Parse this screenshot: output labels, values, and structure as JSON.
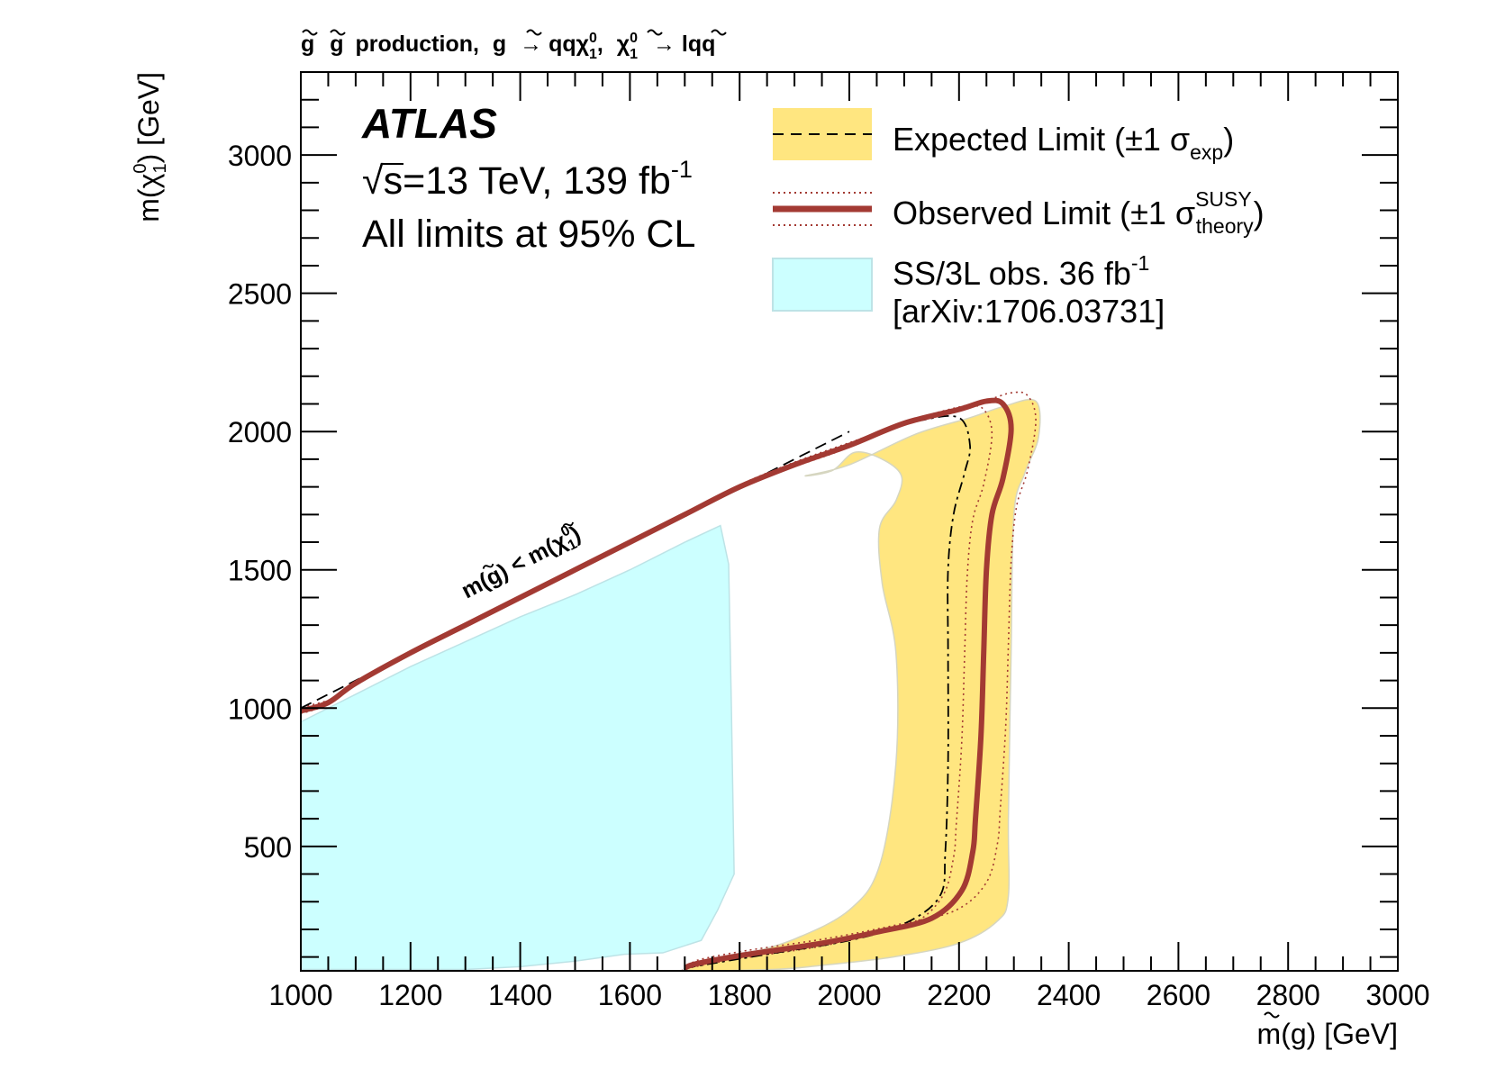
{
  "chart_data": {
    "type": "exclusion-contour",
    "title": "g̃ g̃ production, g̃ → qqχ̃⁰₁, χ̃⁰₁ → lqq",
    "title_parts": {
      "gl1": "g",
      "gl2": "g",
      "production": "production,",
      "gl3": "g",
      "arrow1": "→ qq",
      "chi1": "χ",
      "chi1_sup": "0",
      "chi1_sub": "1",
      "comma": ",",
      "chi2": "χ",
      "chi2_sup": "0",
      "chi2_sub": "1",
      "arrow2": "→ lqq"
    },
    "xlabel": {
      "pre": "m(",
      "sym": "g",
      "post": ") [GeV]"
    },
    "ylabel": {
      "pre": "m(",
      "sym": "χ",
      "sup": "0",
      "sub": "1",
      "post": ") [GeV]"
    },
    "xlim": [
      1000,
      3000
    ],
    "ylim": [
      50,
      3300
    ],
    "xticks": [
      1000,
      1200,
      1400,
      1600,
      1800,
      2000,
      2200,
      2400,
      2600,
      2800,
      3000
    ],
    "yticks": [
      500,
      1000,
      1500,
      2000,
      2500,
      3000
    ],
    "experiment": "ATLAS",
    "energy": {
      "sqrt": "√",
      "s_text": "s=13 TeV, 139 fb",
      "sup": "-1"
    },
    "cl_text": "All limits at 95% CL",
    "diagonal_label": {
      "pre": "m(",
      "sym1": "g",
      "mid": ") <  m(",
      "sym2": "χ",
      "sup": "0",
      "sub": "1",
      "post": ")"
    },
    "legend": {
      "expected": {
        "text": "Expected Limit (±1 σ",
        "sub": "exp",
        "close": ")"
      },
      "observed": {
        "text": "Observed Limit (±1 σ",
        "sup": "SUSY",
        "sub": "theory",
        "close": ")"
      },
      "previous": {
        "line1": "SS/3L obs. 36 fb",
        "sup": "-1",
        "line2": "[arXiv:1706.03731]"
      }
    },
    "colors": {
      "expected_band": "#ffe680",
      "band_edge": "#d6d6c0",
      "observed": "#a33a33",
      "previous_fill": "#ccffff",
      "previous_edge": "#bde3e6"
    },
    "series": [
      {
        "name": "SS/3L obs. 36 fb-1",
        "type": "filled-region",
        "points": [
          [
            1000,
            950
          ],
          [
            1100,
            1050
          ],
          [
            1200,
            1150
          ],
          [
            1300,
            1240
          ],
          [
            1400,
            1330
          ],
          [
            1500,
            1410
          ],
          [
            1600,
            1500
          ],
          [
            1700,
            1600
          ],
          [
            1765,
            1660
          ],
          [
            1780,
            1520
          ],
          [
            1785,
            1000
          ],
          [
            1790,
            400
          ],
          [
            1760,
            270
          ],
          [
            1730,
            160
          ],
          [
            1660,
            115
          ],
          [
            1590,
            110
          ],
          [
            1500,
            85
          ],
          [
            1400,
            65
          ],
          [
            1300,
            55
          ],
          [
            1000,
            55
          ]
        ]
      },
      {
        "name": "Expected Limit ±1σ band",
        "type": "band",
        "points": [
          [
            1700,
            55
          ],
          [
            1800,
            105
          ],
          [
            1900,
            165
          ],
          [
            2000,
            270
          ],
          [
            2055,
            430
          ],
          [
            2085,
            800
          ],
          [
            2085,
            1200
          ],
          [
            2060,
            1450
          ],
          [
            2055,
            1650
          ],
          [
            2085,
            1750
          ],
          [
            2095,
            1840
          ],
          [
            2060,
            1900
          ],
          [
            2010,
            1925
          ],
          [
            1970,
            1860
          ],
          [
            1920,
            1840
          ],
          [
            2000,
            1880
          ],
          [
            2120,
            1990
          ],
          [
            2220,
            2050
          ],
          [
            2280,
            2090
          ],
          [
            2340,
            2110
          ],
          [
            2345,
            1980
          ],
          [
            2320,
            1850
          ],
          [
            2300,
            1700
          ],
          [
            2295,
            1200
          ],
          [
            2290,
            600
          ],
          [
            2290,
            320
          ],
          [
            2270,
            230
          ],
          [
            2200,
            150
          ],
          [
            2080,
            100
          ],
          [
            1950,
            70
          ],
          [
            1860,
            55
          ]
        ]
      },
      {
        "name": "Expected Limit",
        "type": "dash-dot-line",
        "points": [
          [
            1700,
            60
          ],
          [
            1850,
            110
          ],
          [
            2000,
            160
          ],
          [
            2100,
            220
          ],
          [
            2165,
            320
          ],
          [
            2175,
            480
          ],
          [
            2180,
            800
          ],
          [
            2180,
            1200
          ],
          [
            2180,
            1500
          ],
          [
            2190,
            1700
          ],
          [
            2210,
            1850
          ],
          [
            2220,
            1950
          ],
          [
            2200,
            2050
          ],
          [
            2130,
            2040
          ],
          [
            2050,
            1990
          ],
          [
            1960,
            1920
          ],
          [
            1880,
            1860
          ]
        ]
      },
      {
        "name": "Observed Limit",
        "type": "thick-line",
        "points": [
          [
            1000,
            990
          ],
          [
            1050,
            1020
          ],
          [
            1100,
            1090
          ],
          [
            1200,
            1200
          ],
          [
            1300,
            1300
          ],
          [
            1400,
            1400
          ],
          [
            1500,
            1500
          ],
          [
            1600,
            1600
          ],
          [
            1700,
            1700
          ],
          [
            1800,
            1800
          ],
          [
            1900,
            1880
          ],
          [
            2000,
            1950
          ],
          [
            2100,
            2030
          ],
          [
            2200,
            2080
          ],
          [
            2250,
            2110
          ],
          [
            2280,
            2100
          ],
          [
            2295,
            2010
          ],
          [
            2280,
            1830
          ],
          [
            2260,
            1700
          ],
          [
            2250,
            1500
          ],
          [
            2245,
            1200
          ],
          [
            2240,
            900
          ],
          [
            2230,
            600
          ],
          [
            2225,
            480
          ],
          [
            2205,
            340
          ],
          [
            2150,
            240
          ],
          [
            2050,
            190
          ],
          [
            1950,
            150
          ],
          [
            1800,
            105
          ],
          [
            1720,
            75
          ],
          [
            1700,
            60
          ]
        ]
      },
      {
        "name": "Diagonal m(g̃) < m(χ̃⁰₁)",
        "type": "dashed-line",
        "points": [
          [
            1000,
            1000
          ],
          [
            2000,
            2000
          ]
        ]
      }
    ]
  }
}
